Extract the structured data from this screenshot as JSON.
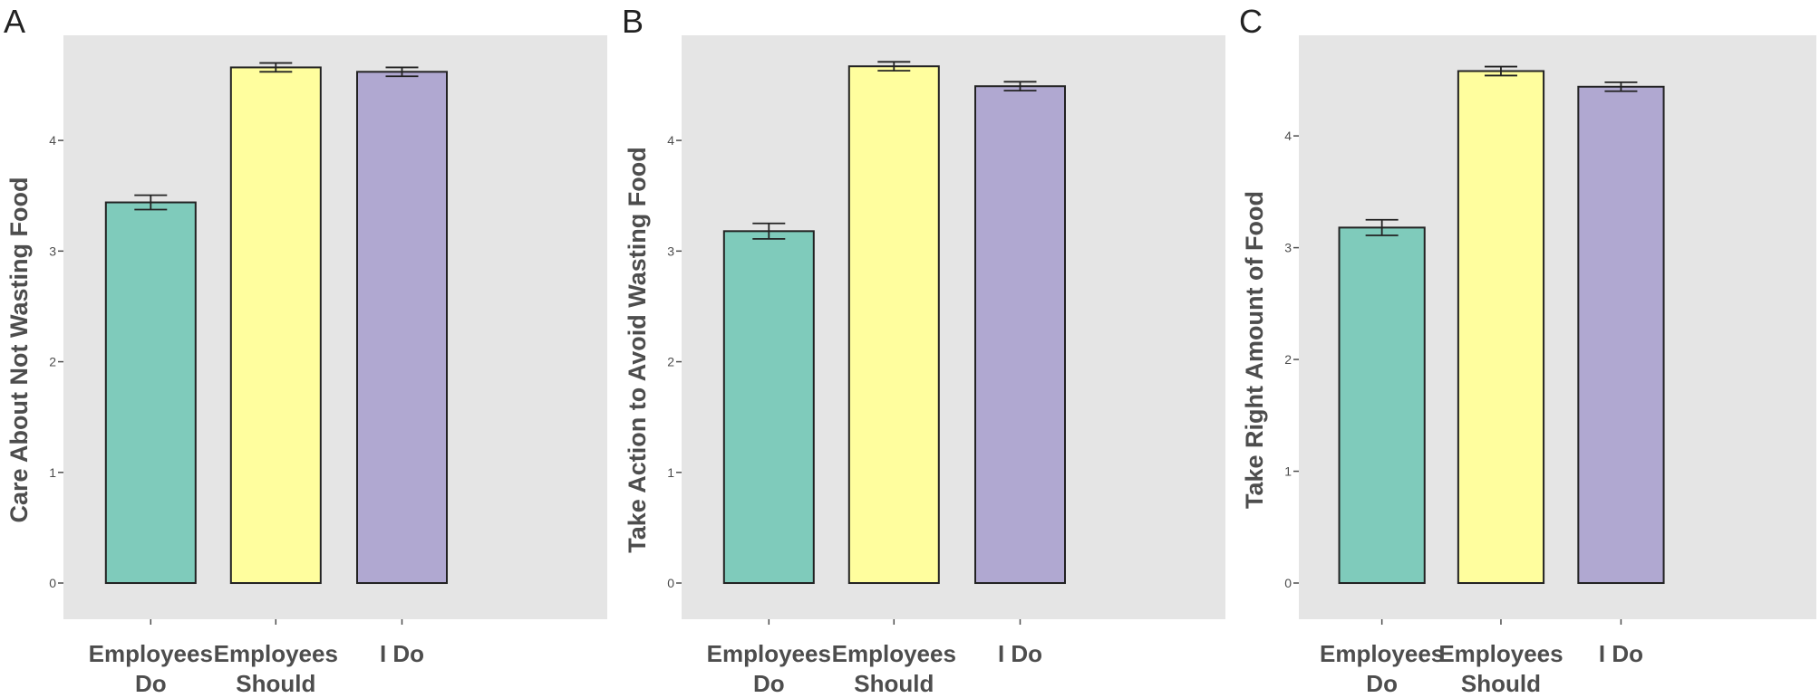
{
  "chart_data": [
    {
      "type": "bar",
      "panel_label": "A",
      "ylabel": "Care About Not Wasting Food",
      "categories": [
        [
          "Employees",
          "Do"
        ],
        [
          "Employees",
          "Should"
        ],
        [
          "I Do"
        ]
      ],
      "values": [
        3.44,
        4.66,
        4.62
      ],
      "error": [
        0.065,
        0.04,
        0.04
      ],
      "colors": [
        "#7fcbbb",
        "#fffe9e",
        "#b0a8d1"
      ],
      "ylim": [
        0,
        4.95
      ],
      "yticks": [
        "0",
        "1",
        "2",
        "3",
        "4"
      ],
      "grid": false
    },
    {
      "type": "bar",
      "panel_label": "B",
      "ylabel": "Take Action to Avoid Wasting Food",
      "categories": [
        [
          "Employees",
          "Do"
        ],
        [
          "Employees",
          "Should"
        ],
        [
          "I Do"
        ]
      ],
      "values": [
        3.18,
        4.67,
        4.49
      ],
      "error": [
        0.07,
        0.04,
        0.04
      ],
      "colors": [
        "#7fcbbb",
        "#fffe9e",
        "#b0a8d1"
      ],
      "ylim": [
        0,
        4.95
      ],
      "yticks": [
        "0",
        "1",
        "2",
        "3",
        "4"
      ],
      "grid": false
    },
    {
      "type": "bar",
      "panel_label": "C",
      "ylabel": "Take Right Amount of Food",
      "categories": [
        [
          "Employees",
          "Do"
        ],
        [
          "Employees",
          "Should"
        ],
        [
          "I Do"
        ]
      ],
      "values": [
        3.18,
        4.58,
        4.44
      ],
      "error": [
        0.07,
        0.04,
        0.04
      ],
      "colors": [
        "#7fcbbb",
        "#fffe9e",
        "#b0a8d1"
      ],
      "ylim": [
        0,
        4.9
      ],
      "yticks": [
        "0",
        "1",
        "2",
        "3",
        "4"
      ],
      "grid": false
    }
  ]
}
